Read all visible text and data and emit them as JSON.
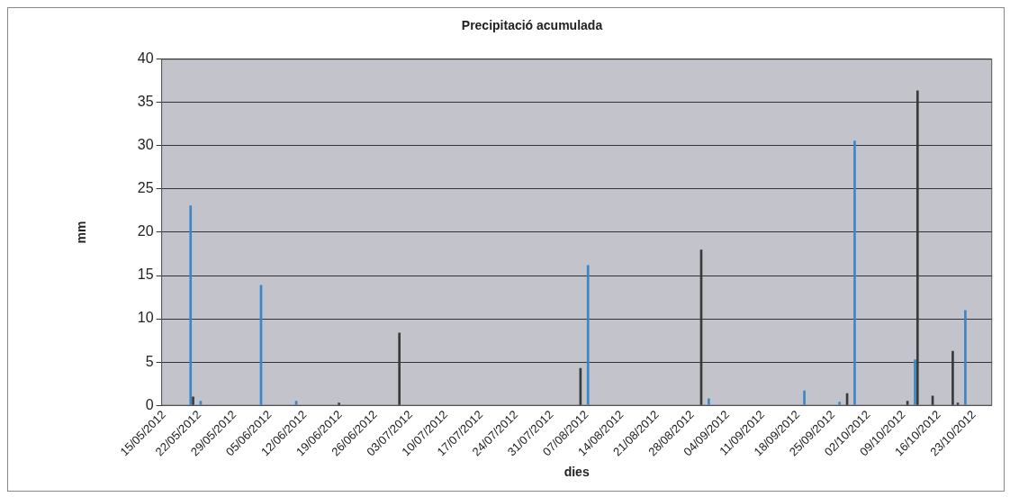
{
  "chart_data": {
    "type": "bar",
    "title": "Precipitació acumulada",
    "xlabel": "dies",
    "ylabel": "mm",
    "categories": [
      "15/05/2012",
      null,
      null,
      null,
      null,
      null,
      null,
      "22/05/2012",
      null,
      null,
      null,
      null,
      null,
      null,
      "29/05/2012",
      null,
      null,
      null,
      null,
      null,
      null,
      "05/06/2012",
      null,
      null,
      null,
      null,
      null,
      null,
      "12/06/2012",
      null,
      null,
      null,
      null,
      null,
      null,
      "19/06/2012",
      null,
      null,
      null,
      null,
      null,
      null,
      "26/06/2012",
      null,
      null,
      null,
      null,
      null,
      null,
      "03/07/2012",
      null,
      null,
      null,
      null,
      null,
      null,
      "10/07/2012",
      null,
      null,
      null,
      null,
      null,
      null,
      "17/07/2012",
      null,
      null,
      null,
      null,
      null,
      null,
      "24/07/2012",
      null,
      null,
      null,
      null,
      null,
      null,
      "31/07/2012",
      null,
      null,
      null,
      null,
      null,
      null,
      "07/08/2012",
      null,
      null,
      null,
      null,
      null,
      null,
      "14/08/2012",
      null,
      null,
      null,
      null,
      null,
      null,
      "21/08/2012",
      null,
      null,
      null,
      null,
      null,
      null,
      "28/08/2012",
      null,
      null,
      null,
      null,
      null,
      null,
      "04/09/2012",
      null,
      null,
      null,
      null,
      null,
      null,
      "11/09/2012",
      null,
      null,
      null,
      null,
      null,
      null,
      "18/09/2012",
      null,
      null,
      null,
      null,
      null,
      null,
      "25/09/2012",
      null,
      null,
      null,
      null,
      null,
      null,
      "02/10/2012",
      null,
      null,
      null,
      null,
      null,
      null,
      "09/10/2012",
      null,
      null,
      null,
      null,
      null,
      null,
      "16/10/2012",
      null,
      null,
      null,
      null,
      null,
      null,
      "23/10/2012",
      null,
      null,
      null
    ],
    "series": [
      {
        "color": "#3a3a3a",
        "values": [
          null,
          null,
          null,
          null,
          null,
          null,
          1.0,
          null,
          null,
          null,
          null,
          null,
          null,
          null,
          null,
          null,
          null,
          null,
          null,
          null,
          null,
          null,
          null,
          null,
          null,
          null,
          null,
          null,
          null,
          null,
          null,
          null,
          null,
          null,
          null,
          0.3,
          null,
          null,
          null,
          null,
          null,
          null,
          null,
          null,
          null,
          null,
          null,
          8.4,
          null,
          null,
          null,
          null,
          null,
          null,
          null,
          null,
          null,
          null,
          null,
          null,
          null,
          null,
          null,
          null,
          null,
          null,
          null,
          null,
          null,
          null,
          null,
          null,
          null,
          null,
          null,
          null,
          null,
          null,
          null,
          null,
          null,
          null,
          null,
          4.3,
          null,
          null,
          null,
          null,
          null,
          null,
          null,
          null,
          null,
          null,
          null,
          null,
          null,
          null,
          null,
          null,
          null,
          null,
          null,
          null,
          null,
          null,
          null,
          18.0,
          null,
          null,
          null,
          null,
          null,
          null,
          null,
          null,
          null,
          null,
          null,
          null,
          null,
          null,
          null,
          null,
          null,
          null,
          null,
          null,
          null,
          null,
          null,
          null,
          null,
          null,
          null,
          null,
          1.4,
          null,
          null,
          null,
          null,
          null,
          null,
          null,
          null,
          null,
          null,
          null,
          0.5,
          null,
          36.4,
          null,
          null,
          1.1,
          null,
          null,
          null,
          6.3,
          0.3,
          null,
          null,
          null,
          null,
          null,
          null
        ]
      },
      {
        "color": "#3b86c6",
        "values": [
          null,
          null,
          null,
          null,
          null,
          23.1,
          null,
          0.5,
          null,
          null,
          null,
          null,
          null,
          null,
          null,
          null,
          null,
          null,
          null,
          13.9,
          null,
          null,
          null,
          null,
          null,
          null,
          0.5,
          null,
          null,
          null,
          null,
          null,
          null,
          null,
          null,
          null,
          null,
          null,
          null,
          null,
          null,
          null,
          null,
          null,
          null,
          null,
          null,
          null,
          null,
          null,
          null,
          null,
          null,
          null,
          null,
          null,
          null,
          null,
          null,
          null,
          null,
          null,
          null,
          null,
          null,
          null,
          null,
          null,
          null,
          null,
          null,
          null,
          null,
          null,
          null,
          null,
          null,
          null,
          null,
          null,
          null,
          null,
          null,
          null,
          16.2,
          null,
          null,
          null,
          null,
          null,
          null,
          null,
          null,
          null,
          null,
          null,
          null,
          null,
          null,
          null,
          null,
          null,
          null,
          null,
          null,
          null,
          null,
          null,
          0.8,
          null,
          null,
          null,
          null,
          null,
          null,
          null,
          null,
          null,
          null,
          null,
          null,
          null,
          null,
          null,
          null,
          null,
          null,
          1.7,
          null,
          null,
          null,
          null,
          null,
          null,
          0.4,
          null,
          null,
          30.6,
          null,
          null,
          null,
          null,
          null,
          null,
          null,
          null,
          null,
          null,
          null,
          5.3,
          null,
          null,
          null,
          null,
          null,
          null,
          null,
          null,
          null,
          11.0,
          null,
          null,
          null,
          null,
          null
        ]
      }
    ],
    "ylim": [
      0,
      40
    ],
    "yticks": [
      0,
      5,
      10,
      15,
      20,
      25,
      30,
      35,
      40
    ],
    "grid": "y",
    "legend": false
  }
}
